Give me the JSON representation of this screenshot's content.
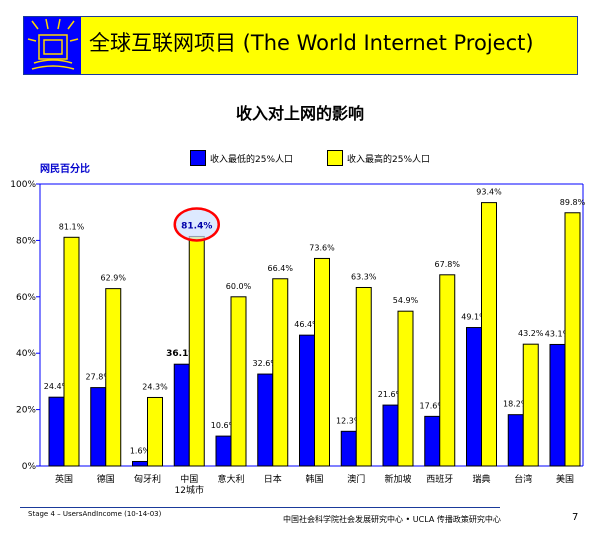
{
  "header": {
    "title": "全球互联网项目 (The World Internet Project)",
    "logo": "world-internet-project-logo"
  },
  "chart_data": {
    "type": "bar",
    "title": "收入对上网的影响",
    "ylabel": "网民百分比",
    "ylim": [
      0,
      100
    ],
    "yticks": [
      "0%",
      "20%",
      "40%",
      "60%",
      "80%",
      "100%"
    ],
    "categories": [
      "英国",
      "德国",
      "匈牙利",
      "中国\n12城市",
      "意大利",
      "日本",
      "韩国",
      "澳门",
      "新加坡",
      "西班牙",
      "瑞典",
      "台湾",
      "美国"
    ],
    "series": [
      {
        "name": "收入最低的25%人口",
        "color": "#0000ff",
        "values": [
          24.4,
          27.8,
          1.6,
          36.1,
          10.6,
          32.6,
          46.4,
          12.3,
          21.6,
          17.6,
          49.1,
          18.2,
          43.1
        ]
      },
      {
        "name": "收入最高的25%人口",
        "color": "#ffff00",
        "values": [
          81.1,
          62.9,
          24.3,
          81.4,
          60.0,
          66.4,
          73.6,
          63.3,
          54.9,
          67.8,
          93.4,
          43.2,
          89.8
        ]
      }
    ],
    "labels_low": [
      "24.4%",
      "27.8%",
      "1.6%",
      "36.1%",
      "10.6%",
      "32.6%",
      "46.4%",
      "12.3%",
      "21.6%",
      "17.6%",
      "49.1%",
      "18.2%",
      "43.1%"
    ],
    "labels_high": [
      "81.1%",
      "62.9%",
      "24.3%",
      "81.4%",
      "60.0%",
      "66.4%",
      "73.6%",
      "63.3%",
      "54.9%",
      "67.8%",
      "93.4%",
      "43.2%",
      "89.8%"
    ],
    "highlight": {
      "category": "中国\n12城市",
      "series": "收入最高的25%人口",
      "color": "#ff0000"
    },
    "legend": "top"
  },
  "footer": {
    "left": "Stage 4 – UsersAndIncome (10-14-03)",
    "right": "中国社会科学院社会发展研究中心 • UCLA 传播政策研究中心",
    "page": "7"
  }
}
